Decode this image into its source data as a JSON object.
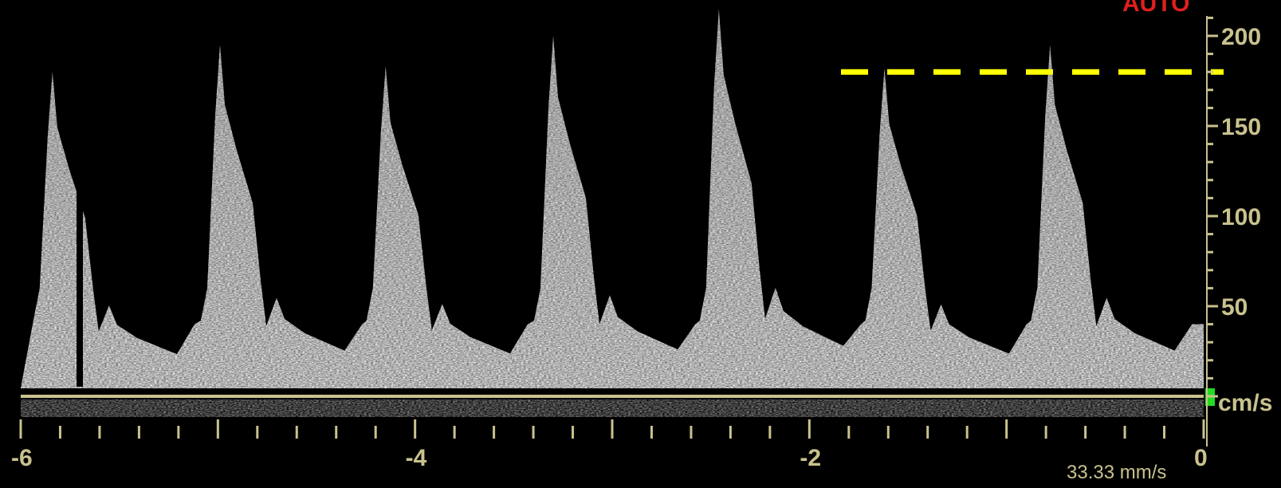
{
  "mode_label": "AUTO",
  "velocity_axis": {
    "unit": "cm/s",
    "ticks": [
      {
        "value": 200,
        "label": "200"
      },
      {
        "value": 150,
        "label": "150"
      },
      {
        "value": 100,
        "label": "100"
      },
      {
        "value": 50,
        "label": "50"
      }
    ],
    "range": [
      0,
      215
    ]
  },
  "time_axis": {
    "ticks": [
      {
        "value": -6,
        "label": "-6"
      },
      {
        "value": -4,
        "label": "-4"
      },
      {
        "value": -2,
        "label": "-2"
      },
      {
        "value": 0,
        "label": "0"
      }
    ],
    "range": [
      -6,
      0
    ]
  },
  "sweep_speed": "33.33 mm/s",
  "reference_line_velocity": 180,
  "waveform": {
    "beat_times": [
      -5.92,
      -5.07,
      -4.23,
      -3.38,
      -2.54,
      -1.7,
      -0.86
    ],
    "peak_velocities": [
      180,
      195,
      183,
      200,
      215,
      182,
      195
    ],
    "colors": {
      "background": "#000000",
      "axis": "#c9c28e",
      "reference_line": "#ffff00",
      "baseline_marker": "#22dd22",
      "mode_label": "#e0201c"
    }
  }
}
